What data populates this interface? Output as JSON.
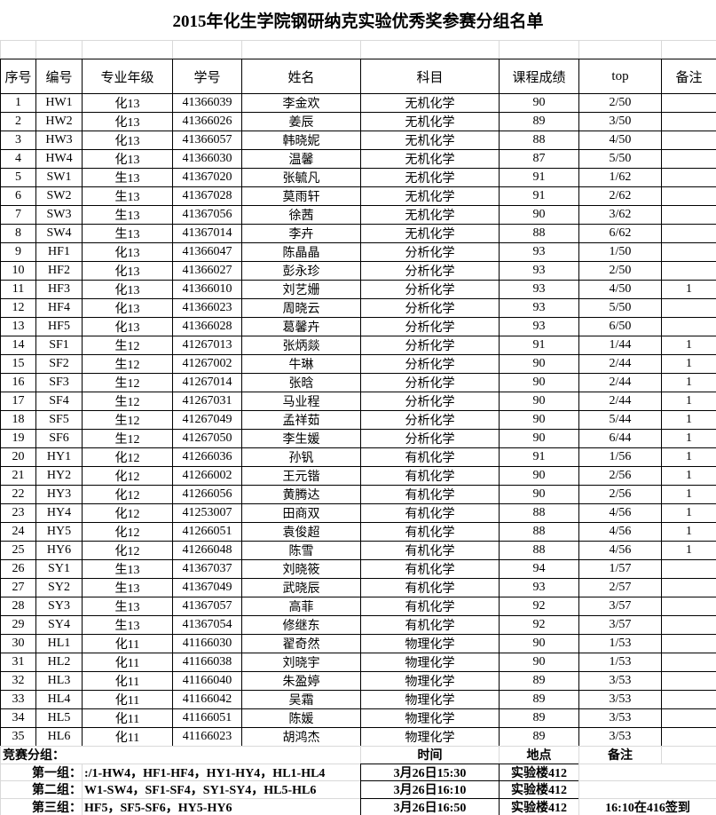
{
  "title": "2015年化生学院钢研纳克实验优秀奖参赛分组名单",
  "table": {
    "header": [
      "序号",
      "编号",
      "专业年级",
      "学号",
      "姓名",
      "科目",
      "课程成绩",
      "top",
      "备注"
    ],
    "rows": [
      [
        "1",
        "HW1",
        "化13",
        "41366039",
        "李金欢",
        "无机化学",
        "90",
        "2/50"
      ],
      [
        "2",
        "HW2",
        "化13",
        "41366026",
        "姜辰",
        "无机化学",
        "89",
        "3/50"
      ],
      [
        "3",
        "HW3",
        "化13",
        "41366057",
        "韩晓妮",
        "无机化学",
        "88",
        "4/50"
      ],
      [
        "4",
        "HW4",
        "化13",
        "41366030",
        "温馨",
        "无机化学",
        "87",
        "5/50"
      ],
      [
        "5",
        "SW1",
        "生13",
        "41367020",
        "张毓凡",
        "无机化学",
        "91",
        "1/62"
      ],
      [
        "6",
        "SW2",
        "生13",
        "41367028",
        "莫雨轩",
        "无机化学",
        "91",
        "2/62"
      ],
      [
        "7",
        "SW3",
        "生13",
        "41367056",
        "徐茜",
        "无机化学",
        "90",
        "3/62"
      ],
      [
        "8",
        "SW4",
        "生13",
        "41367014",
        "李卉",
        "无机化学",
        "88",
        "6/62"
      ],
      [
        "9",
        "HF1",
        "化13",
        "41366047",
        "陈晶晶",
        "分析化学",
        "93",
        "1/50"
      ],
      [
        "10",
        "HF2",
        "化13",
        "41366027",
        "彭永珍",
        "分析化学",
        "93",
        "2/50"
      ],
      [
        "11",
        "HF3",
        "化13",
        "41366010",
        "刘艺姗",
        "分析化学",
        "93",
        "4/50",
        "1"
      ],
      [
        "12",
        "HF4",
        "化13",
        "41366023",
        "周晓云",
        "分析化学",
        "93",
        "5/50"
      ],
      [
        "13",
        "HF5",
        "化13",
        "41366028",
        "葛馨卉",
        "分析化学",
        "93",
        "6/50"
      ],
      [
        "14",
        "SF1",
        "生12",
        "41267013",
        "张炳燚",
        "分析化学",
        "91",
        "1/44",
        "1"
      ],
      [
        "15",
        "SF2",
        "生12",
        "41267002",
        "牛琳",
        "分析化学",
        "90",
        "2/44",
        "1"
      ],
      [
        "16",
        "SF3",
        "生12",
        "41267014",
        "张晗",
        "分析化学",
        "90",
        "2/44",
        "1"
      ],
      [
        "17",
        "SF4",
        "生12",
        "41267031",
        "马业程",
        "分析化学",
        "90",
        "2/44",
        "1"
      ],
      [
        "18",
        "SF5",
        "生12",
        "41267049",
        "孟祥茹",
        "分析化学",
        "90",
        "5/44",
        "1"
      ],
      [
        "19",
        "SF6",
        "生12",
        "41267050",
        "李生媛",
        "分析化学",
        "90",
        "6/44",
        "1"
      ],
      [
        "20",
        "HY1",
        "化12",
        "41266036",
        "孙钒",
        "有机化学",
        "91",
        "1/56",
        "1"
      ],
      [
        "21",
        "HY2",
        "化12",
        "41266002",
        "王元锴",
        "有机化学",
        "90",
        "2/56",
        "1"
      ],
      [
        "22",
        "HY3",
        "化12",
        "41266056",
        "黄腾达",
        "有机化学",
        "90",
        "2/56",
        "1"
      ],
      [
        "23",
        "HY4",
        "化12",
        "41253007",
        "田商双",
        "有机化学",
        "88",
        "4/56",
        "1"
      ],
      [
        "24",
        "HY5",
        "化12",
        "41266051",
        "袁俊超",
        "有机化学",
        "88",
        "4/56",
        "1"
      ],
      [
        "25",
        "HY6",
        "化12",
        "41266048",
        "陈雪",
        "有机化学",
        "88",
        "4/56",
        "1"
      ],
      [
        "26",
        "SY1",
        "生13",
        "41367037",
        "刘晓筱",
        "有机化学",
        "94",
        "1/57"
      ],
      [
        "27",
        "SY2",
        "生13",
        "41367049",
        "武晓辰",
        "有机化学",
        "93",
        "2/57"
      ],
      [
        "28",
        "SY3",
        "生13",
        "41367057",
        "高菲",
        "有机化学",
        "92",
        "3/57"
      ],
      [
        "29",
        "SY4",
        "生13",
        "41367054",
        "修继东",
        "有机化学",
        "92",
        "3/57"
      ],
      [
        "30",
        "HL1",
        "化11",
        "41166030",
        "翟奇然",
        "物理化学",
        "90",
        "1/53"
      ],
      [
        "31",
        "HL2",
        "化11",
        "41166038",
        "刘晓宇",
        "物理化学",
        "90",
        "1/53"
      ],
      [
        "32",
        "HL3",
        "化11",
        "41166040",
        "朱盈婷",
        "物理化学",
        "89",
        "3/53"
      ],
      [
        "33",
        "HL4",
        "化11",
        "41166042",
        "吴霜",
        "物理化学",
        "89",
        "3/53"
      ],
      [
        "34",
        "HL5",
        "化11",
        "41166051",
        "陈媛",
        "物理化学",
        "89",
        "3/53"
      ],
      [
        "35",
        "HL6",
        "化11",
        "41166023",
        "胡鸿杰",
        "物理化学",
        "89",
        "3/53"
      ]
    ]
  },
  "footer": {
    "label": "竞赛分组：",
    "header": [
      "时间",
      "地点",
      "备注"
    ],
    "groups": [
      {
        "name": "第一组：",
        "members": ":/1-HW4，HF1-HF4，HY1-HY4，HL1-HL4",
        "time": "3月26日15:30",
        "place": "实验楼412"
      },
      {
        "name": "第二组：",
        "members": "W1-SW4，SF1-SF4，SY1-SY4，HL5-HL6",
        "time": "3月26日16:10",
        "place": "实验楼412"
      },
      {
        "name": "第三组：",
        "members": "HF5，SF5-SF6，HY5-HY6",
        "time": "3月26日16:50",
        "place": "实验楼412",
        "note": "16:10在416签到"
      }
    ]
  }
}
